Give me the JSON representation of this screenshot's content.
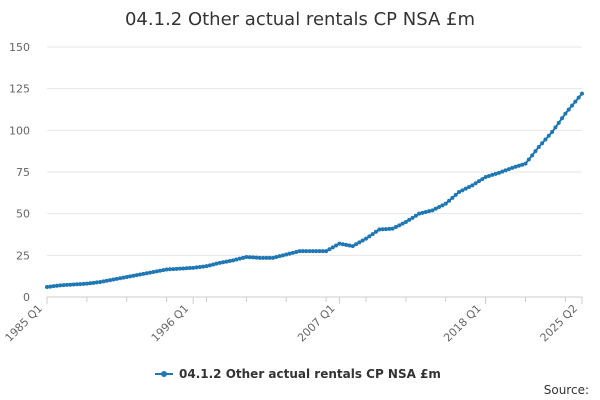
{
  "chart_data": {
    "type": "line",
    "title": "04.1.2 Other actual rentals CP NSA £m",
    "xlabel": "",
    "ylabel": "",
    "ylim": [
      0,
      150
    ],
    "yticks": [
      0,
      25,
      50,
      75,
      100,
      125,
      150
    ],
    "x_tick_labels": [
      "1985 Q1",
      "1996 Q1",
      "2007 Q1",
      "2018 Q1",
      "2025 Q2"
    ],
    "x_range": [
      "1985 Q1",
      "2025 Q2"
    ],
    "grid": true,
    "legend_position": "bottom",
    "series": [
      {
        "name": "04.1.2 Other actual rentals CP NSA £m",
        "color": "#1f77b4",
        "points": [
          [
            "1985 Q1",
            6
          ],
          [
            "1986 Q1",
            7
          ],
          [
            "1987 Q1",
            7.5
          ],
          [
            "1988 Q1",
            8
          ],
          [
            "1989 Q1",
            9
          ],
          [
            "1990 Q1",
            10.5
          ],
          [
            "1991 Q1",
            12
          ],
          [
            "1992 Q1",
            13.5
          ],
          [
            "1993 Q1",
            15
          ],
          [
            "1994 Q1",
            16.5
          ],
          [
            "1995 Q1",
            17
          ],
          [
            "1996 Q1",
            17.5
          ],
          [
            "1997 Q1",
            18.5
          ],
          [
            "1998 Q1",
            20.5
          ],
          [
            "1999 Q1",
            22
          ],
          [
            "2000 Q1",
            24
          ],
          [
            "2001 Q1",
            23.5
          ],
          [
            "2002 Q1",
            23.5
          ],
          [
            "2003 Q1",
            25.5
          ],
          [
            "2004 Q1",
            27.5
          ],
          [
            "2005 Q1",
            27.5
          ],
          [
            "2006 Q1",
            27.5
          ],
          [
            "2007 Q1",
            32
          ],
          [
            "2008 Q1",
            30.5
          ],
          [
            "2009 Q1",
            35
          ],
          [
            "2010 Q1",
            40.5
          ],
          [
            "2011 Q1",
            41
          ],
          [
            "2012 Q1",
            45
          ],
          [
            "2013 Q1",
            50
          ],
          [
            "2014 Q1",
            52
          ],
          [
            "2015 Q1",
            56
          ],
          [
            "2016 Q1",
            63
          ],
          [
            "2017 Q1",
            67
          ],
          [
            "2018 Q1",
            72
          ],
          [
            "2019 Q1",
            74.5
          ],
          [
            "2020 Q1",
            77.5
          ],
          [
            "2021 Q1",
            80
          ],
          [
            "2022 Q1",
            90
          ],
          [
            "2023 Q1",
            99
          ],
          [
            "2024 Q1",
            110
          ],
          [
            "2025 Q2",
            122
          ]
        ]
      }
    ]
  },
  "legend": {
    "label": "04.1.2 Other actual rentals CP NSA £m"
  },
  "footer": {
    "source": "Source:"
  },
  "colors": {
    "series": "#1f77b4",
    "grid": "#e6e6e6",
    "axis": "#cccccc",
    "text": "#333333",
    "muted": "#666666"
  }
}
